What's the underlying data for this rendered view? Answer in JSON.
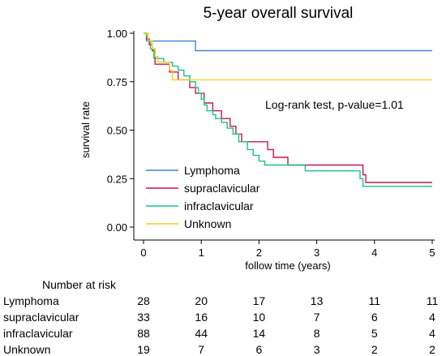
{
  "chart_data": {
    "type": "line",
    "title": "5-year overall survival",
    "xlabel": "follow time (years)",
    "ylabel": "survival rate",
    "xlim": [
      0,
      5
    ],
    "ylim": [
      0,
      1
    ],
    "xticks": [
      0,
      1,
      2,
      3,
      4,
      5
    ],
    "xtick_labels": [
      "0",
      "1",
      "2",
      "3",
      "4",
      "5"
    ],
    "yticks": [
      0,
      0.25,
      0.5,
      0.75,
      1
    ],
    "ytick_labels": [
      "0.00",
      "0.25",
      "0.50",
      "0.75",
      "1.00"
    ],
    "grid": false,
    "legend_position": "bottom-left",
    "annotation": "Log-rank test, p-value=1.01",
    "series": [
      {
        "name": "Lymphoma",
        "color": "#3d87d6",
        "step_points": [
          [
            0,
            1.0
          ],
          [
            0.05,
            0.96
          ],
          [
            0.9,
            0.91
          ],
          [
            5,
            0.91
          ]
        ]
      },
      {
        "name": "supraclavicular",
        "color": "#c8174f",
        "step_points": [
          [
            0,
            1.0
          ],
          [
            0.05,
            0.97
          ],
          [
            0.1,
            0.94
          ],
          [
            0.15,
            0.91
          ],
          [
            0.2,
            0.84
          ],
          [
            0.45,
            0.8
          ],
          [
            0.6,
            0.76
          ],
          [
            0.8,
            0.72
          ],
          [
            0.9,
            0.69
          ],
          [
            1.05,
            0.64
          ],
          [
            1.2,
            0.6
          ],
          [
            1.35,
            0.56
          ],
          [
            1.5,
            0.52
          ],
          [
            1.6,
            0.48
          ],
          [
            1.7,
            0.44
          ],
          [
            2.15,
            0.4
          ],
          [
            2.25,
            0.36
          ],
          [
            2.5,
            0.32
          ],
          [
            3.8,
            0.27
          ],
          [
            3.85,
            0.23
          ],
          [
            5,
            0.23
          ]
        ]
      },
      {
        "name": "infraclavicular",
        "color": "#1cbf8c",
        "step_points": [
          [
            0,
            1.0
          ],
          [
            0.05,
            0.98
          ],
          [
            0.08,
            0.96
          ],
          [
            0.12,
            0.92
          ],
          [
            0.18,
            0.87
          ],
          [
            0.35,
            0.85
          ],
          [
            0.5,
            0.83
          ],
          [
            0.6,
            0.81
          ],
          [
            0.7,
            0.78
          ],
          [
            0.8,
            0.75
          ],
          [
            0.9,
            0.72
          ],
          [
            0.95,
            0.69
          ],
          [
            1.0,
            0.66
          ],
          [
            1.05,
            0.63
          ],
          [
            1.1,
            0.6
          ],
          [
            1.2,
            0.58
          ],
          [
            1.25,
            0.56
          ],
          [
            1.35,
            0.54
          ],
          [
            1.45,
            0.51
          ],
          [
            1.55,
            0.48
          ],
          [
            1.65,
            0.44
          ],
          [
            1.8,
            0.4
          ],
          [
            1.9,
            0.37
          ],
          [
            2.0,
            0.34
          ],
          [
            2.1,
            0.32
          ],
          [
            2.8,
            0.29
          ],
          [
            3.75,
            0.25
          ],
          [
            3.8,
            0.21
          ],
          [
            5,
            0.21
          ]
        ]
      },
      {
        "name": "Unknown",
        "color": "#f2cf1f",
        "step_points": [
          [
            0,
            1.0
          ],
          [
            0.08,
            0.96
          ],
          [
            0.15,
            0.92
          ],
          [
            0.2,
            0.88
          ],
          [
            0.25,
            0.85
          ],
          [
            0.45,
            0.81
          ],
          [
            0.5,
            0.76
          ],
          [
            5,
            0.76
          ]
        ]
      }
    ],
    "risk_table": {
      "title": "Number at risk",
      "times": [
        0,
        1,
        2,
        3,
        4,
        5
      ],
      "rows": [
        {
          "label": "Lymphoma",
          "values": [
            28,
            20,
            17,
            13,
            11,
            11
          ]
        },
        {
          "label": "supraclavicular",
          "values": [
            33,
            16,
            10,
            7,
            6,
            4
          ]
        },
        {
          "label": "infraclavicular",
          "values": [
            88,
            44,
            14,
            8,
            5,
            4
          ]
        },
        {
          "label": "Unknown",
          "values": [
            19,
            7,
            6,
            3,
            2,
            2
          ]
        }
      ]
    }
  }
}
